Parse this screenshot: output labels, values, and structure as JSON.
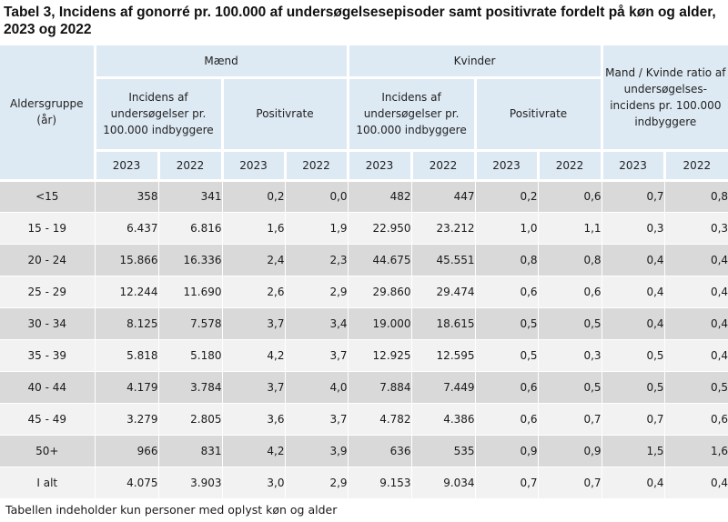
{
  "title": "Tabel 3, Incidens af gonorré pr. 100.000 af undersøgelsesepisoder samt positivrate fordelt på køn og alder, 2023 og 2022",
  "header": {
    "age_group": "Aldersgruppe (år)",
    "men": "Mænd",
    "women": "Kvinder",
    "ratio": "Mand / Kvinde ratio af undersøgelses-incidens pr. 100.000 indbyggere",
    "incidence": "Incidens af undersøgelser pr. 100.000 indbyggere",
    "positive_rate": "Positivrate",
    "years": [
      "2023",
      "2022",
      "2023",
      "2022",
      "2023",
      "2022",
      "2023",
      "2022",
      "2023",
      "2022"
    ]
  },
  "rows": [
    {
      "age": "<15",
      "values": [
        "358",
        "341",
        "0,2",
        "0,0",
        "482",
        "447",
        "0,2",
        "0,6",
        "0,7",
        "0,8"
      ]
    },
    {
      "age": "15 - 19",
      "values": [
        "6.437",
        "6.816",
        "1,6",
        "1,9",
        "22.950",
        "23.212",
        "1,0",
        "1,1",
        "0,3",
        "0,3"
      ]
    },
    {
      "age": "20 - 24",
      "values": [
        "15.866",
        "16.336",
        "2,4",
        "2,3",
        "44.675",
        "45.551",
        "0,8",
        "0,8",
        "0,4",
        "0,4"
      ]
    },
    {
      "age": "25 - 29",
      "values": [
        "12.244",
        "11.690",
        "2,6",
        "2,9",
        "29.860",
        "29.474",
        "0,6",
        "0,6",
        "0,4",
        "0,4"
      ]
    },
    {
      "age": "30 - 34",
      "values": [
        "8.125",
        "7.578",
        "3,7",
        "3,4",
        "19.000",
        "18.615",
        "0,5",
        "0,5",
        "0,4",
        "0,4"
      ]
    },
    {
      "age": "35 - 39",
      "values": [
        "5.818",
        "5.180",
        "4,2",
        "3,7",
        "12.925",
        "12.595",
        "0,5",
        "0,3",
        "0,5",
        "0,4"
      ]
    },
    {
      "age": "40 - 44",
      "values": [
        "4.179",
        "3.784",
        "3,7",
        "4,0",
        "7.884",
        "7.449",
        "0,6",
        "0,5",
        "0,5",
        "0,5"
      ]
    },
    {
      "age": "45 - 49",
      "values": [
        "3.279",
        "2.805",
        "3,6",
        "3,7",
        "4.782",
        "4.386",
        "0,6",
        "0,7",
        "0,7",
        "0,6"
      ]
    },
    {
      "age": "50+",
      "values": [
        "966",
        "831",
        "4,2",
        "3,9",
        "636",
        "535",
        "0,9",
        "0,9",
        "1,5",
        "1,6"
      ]
    },
    {
      "age": "I alt",
      "values": [
        "4.075",
        "3.903",
        "3,0",
        "2,9",
        "9.153",
        "9.034",
        "0,7",
        "0,7",
        "0,4",
        "0,4"
      ]
    }
  ],
  "footer": "Tabellen indeholder kun personer med oplyst køn og alder"
}
